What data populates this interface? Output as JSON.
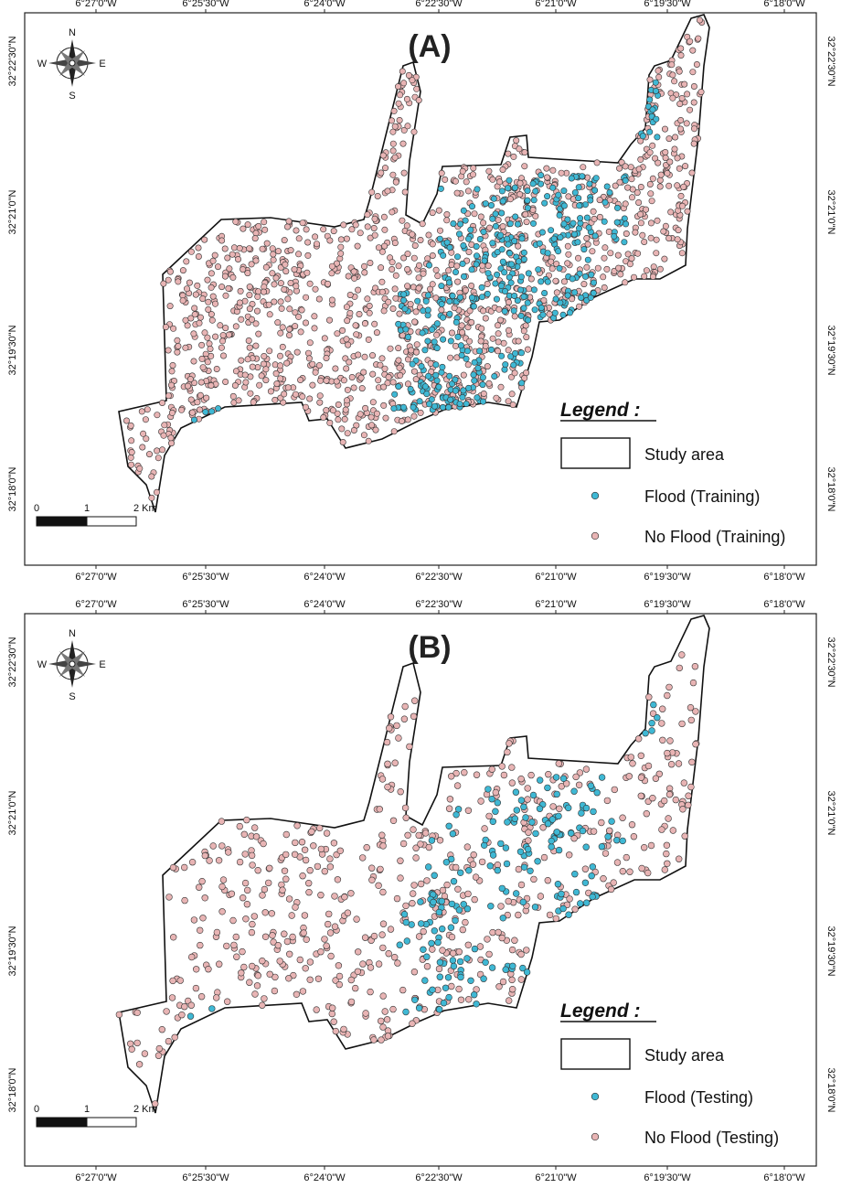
{
  "panels": [
    {
      "label": "(A)",
      "top_ticks": [
        "6°27'0\"W",
        "6°25'30\"W",
        "6°24'0\"W",
        "6°22'30\"W",
        "6°21'0\"W",
        "6°19'30\"W",
        "6°18'0\"W"
      ],
      "bottom_ticks": [
        "6°27'0\"W",
        "6°25'30\"W",
        "6°24'0\"W",
        "6°22'30\"W",
        "6°21'0\"W",
        "6°19'30\"W",
        "6°18'0\"W"
      ],
      "left_ticks": [
        "32°22'30\"N",
        "32°21'0\"N",
        "32°19'30\"N",
        "32°18'0\"N"
      ],
      "right_ticks": [
        "32°22'30\"N",
        "32°21'0\"N",
        "32°19'30\"N",
        "32°18'0\"N"
      ],
      "compass": {
        "n": "N",
        "s": "S",
        "e": "E",
        "w": "W"
      },
      "scale_bar": {
        "labels": [
          "0",
          "1",
          "2 Km"
        ]
      },
      "legend": {
        "title": "Legend :",
        "items": [
          "Study area",
          "Flood (Training)",
          "No Flood (Training)"
        ]
      }
    },
    {
      "label": "(B)",
      "top_ticks": [
        "6°27'0\"W",
        "6°25'30\"W",
        "6°24'0\"W",
        "6°22'30\"W",
        "6°21'0\"W",
        "6°19'30\"W",
        "6°18'0\"W"
      ],
      "bottom_ticks": [
        "6°27'0\"W",
        "6°25'30\"W",
        "6°24'0\"W",
        "6°22'30\"W",
        "6°21'0\"W",
        "6°19'30\"W",
        "6°18'0\"W"
      ],
      "left_ticks": [
        "32°22'30\"N",
        "32°21'0\"N",
        "32°19'30\"N",
        "32°18'0\"N"
      ],
      "right_ticks": [
        "32°22'30\"N",
        "32°21'0\"N",
        "32°19'30\"N",
        "32°18'0\"N"
      ],
      "compass": {
        "n": "N",
        "s": "S",
        "e": "E",
        "w": "W"
      },
      "scale_bar": {
        "labels": [
          "0",
          "1",
          "2 Km"
        ]
      },
      "legend": {
        "title": "Legend :",
        "items": [
          "Study area",
          "Flood (Testing)",
          "No Flood (Testing)"
        ]
      }
    }
  ],
  "colors": {
    "flood": "#3fb8d4",
    "no_flood": "#e8b4b4",
    "point_stroke": "#333333",
    "boundary": "#111111"
  }
}
